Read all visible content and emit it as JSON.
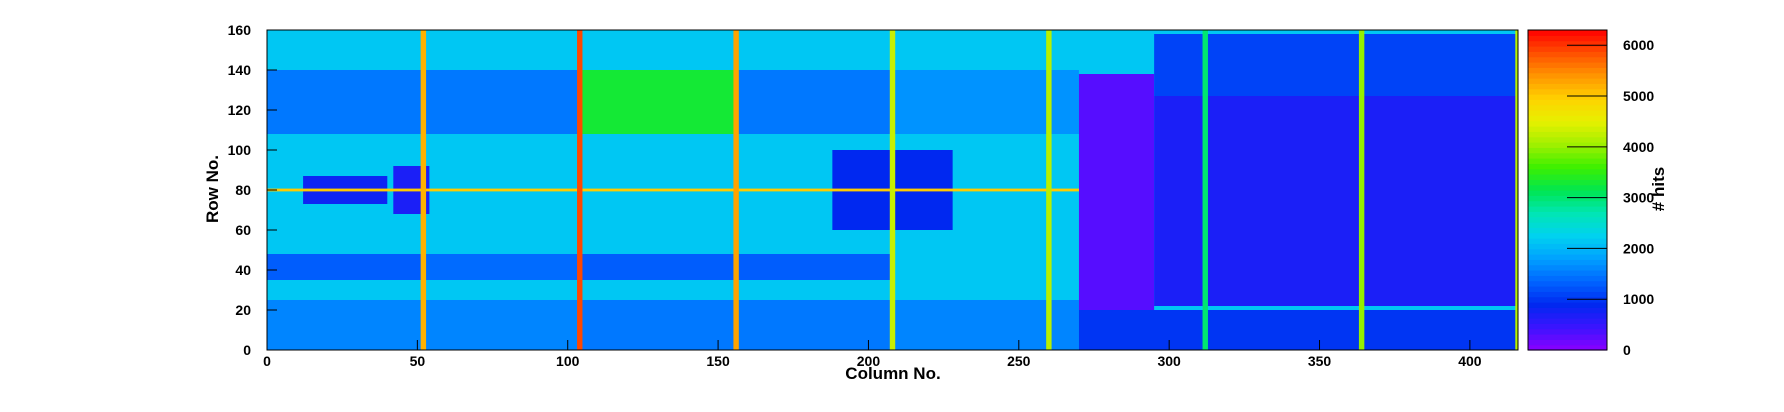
{
  "chart_data": {
    "type": "heatmap",
    "title": "",
    "xlabel": "Column No.",
    "ylabel": "Row No.",
    "zlabel": "# hits",
    "xlim": [
      0,
      416
    ],
    "ylim": [
      0,
      160
    ],
    "zlim": [
      0,
      6300
    ],
    "x_ticks": [
      0,
      50,
      100,
      150,
      200,
      250,
      300,
      350,
      400
    ],
    "y_ticks": [
      0,
      20,
      40,
      60,
      80,
      100,
      120,
      140,
      160
    ],
    "z_ticks": [
      0,
      1000,
      2000,
      3000,
      4000,
      5000,
      6000
    ],
    "x_tick_labels": [
      "0",
      "50",
      "100",
      "150",
      "200",
      "250",
      "300",
      "350",
      "400"
    ],
    "y_tick_labels": [
      "0",
      "20",
      "40",
      "60",
      "80",
      "100",
      "120",
      "140",
      "160"
    ],
    "z_tick_labels": [
      "0",
      "1000",
      "2000",
      "3000",
      "4000",
      "5000",
      "6000"
    ],
    "palette": [
      "#8b00ff",
      "#3c14ff",
      "#0028f0",
      "#0064ff",
      "#00a0ff",
      "#00d2f0",
      "#00e6b4",
      "#00e650",
      "#3cf000",
      "#a0f000",
      "#e6f000",
      "#ffd200",
      "#ff9600",
      "#ff5000",
      "#ff0000"
    ],
    "background_level": 2150,
    "columns": [
      {
        "x": 52,
        "value": 5200
      },
      {
        "x": 104,
        "value": 5900
      },
      {
        "x": 156,
        "value": 5300
      },
      {
        "x": 208,
        "value": 4300
      },
      {
        "x": 260,
        "value": 4200
      },
      {
        "x": 312,
        "value": 3000
      },
      {
        "x": 364,
        "value": 4000
      },
      {
        "x": 416,
        "value": 4200
      }
    ],
    "hot_row": {
      "y": 80,
      "value": 5000
    },
    "regions": [
      {
        "x": [
          0,
          52
        ],
        "y": [
          0,
          25
        ],
        "value": 1600
      },
      {
        "x": [
          0,
          52
        ],
        "y": [
          35,
          48
        ],
        "value": 1300
      },
      {
        "x": [
          52,
          104
        ],
        "y": [
          0,
          25
        ],
        "value": 1600
      },
      {
        "x": [
          52,
          104
        ],
        "y": [
          35,
          48
        ],
        "value": 1400
      },
      {
        "x": [
          104,
          156
        ],
        "y": [
          0,
          25
        ],
        "value": 1500
      },
      {
        "x": [
          104,
          156
        ],
        "y": [
          35,
          48
        ],
        "value": 1300
      },
      {
        "x": [
          156,
          208
        ],
        "y": [
          0,
          25
        ],
        "value": 1500
      },
      {
        "x": [
          156,
          208
        ],
        "y": [
          35,
          48
        ],
        "value": 1300
      },
      {
        "x": [
          208,
          270
        ],
        "y": [
          0,
          25
        ],
        "value": 1600
      },
      {
        "x": [
          0,
          52
        ],
        "y": [
          108,
          140
        ],
        "value": 1500
      },
      {
        "x": [
          52,
          104
        ],
        "y": [
          108,
          140
        ],
        "value": 1500
      },
      {
        "x": [
          104,
          156
        ],
        "y": [
          108,
          140
        ],
        "value": 3300
      },
      {
        "x": [
          156,
          208
        ],
        "y": [
          108,
          140
        ],
        "value": 1500
      },
      {
        "x": [
          208,
          270
        ],
        "y": [
          108,
          140
        ],
        "value": 1700
      },
      {
        "x": [
          188,
          228
        ],
        "y": [
          60,
          100
        ],
        "value": 900
      },
      {
        "x": [
          12,
          40
        ],
        "y": [
          73,
          87
        ],
        "value": 800
      },
      {
        "x": [
          42,
          54
        ],
        "y": [
          68,
          92
        ],
        "value": 700
      },
      {
        "x": [
          270,
          295
        ],
        "y": [
          20,
          138
        ],
        "value": 300
      },
      {
        "x": [
          295,
          416
        ],
        "y": [
          22,
          127
        ],
        "value": 700
      },
      {
        "x": [
          295,
          416
        ],
        "y": [
          127,
          158
        ],
        "value": 1100
      },
      {
        "x": [
          270,
          416
        ],
        "y": [
          0,
          20
        ],
        "value": 1000
      }
    ]
  }
}
